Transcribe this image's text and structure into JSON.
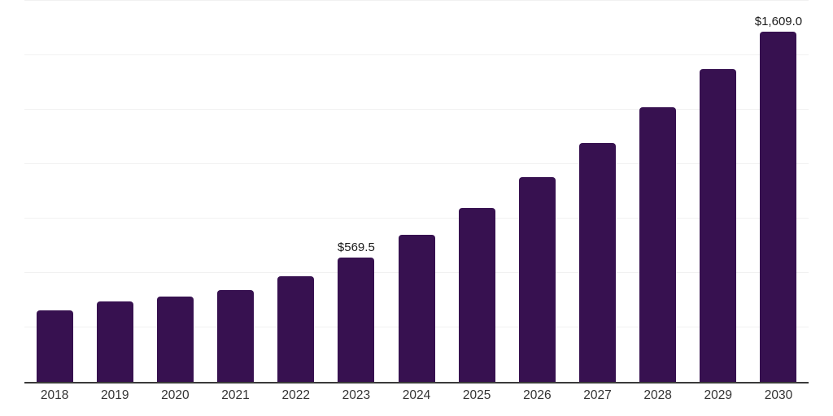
{
  "chart_data": {
    "type": "bar",
    "title": "",
    "xlabel": "",
    "ylabel": "",
    "categories": [
      "2018",
      "2019",
      "2020",
      "2021",
      "2022",
      "2023",
      "2024",
      "2025",
      "2026",
      "2027",
      "2028",
      "2029",
      "2030"
    ],
    "values": [
      328,
      369,
      391,
      421,
      484,
      569.5,
      674,
      800,
      942,
      1098,
      1262,
      1437,
      1609
    ],
    "bar_labels": [
      "",
      "",
      "",
      "",
      "",
      "$569.5",
      "",
      "",
      "",
      "",
      "",
      "",
      "$1,609.0"
    ],
    "ylim": [
      0,
      1750
    ],
    "gridline_step": 250,
    "grid": true,
    "legend": false,
    "colors": {
      "bar": "#371150",
      "gridline": "#f1f1f1",
      "axis_line": "#3a3a3a",
      "x_label": "#333333",
      "data_label": "#1a1a1a",
      "background": "#ffffff"
    }
  }
}
